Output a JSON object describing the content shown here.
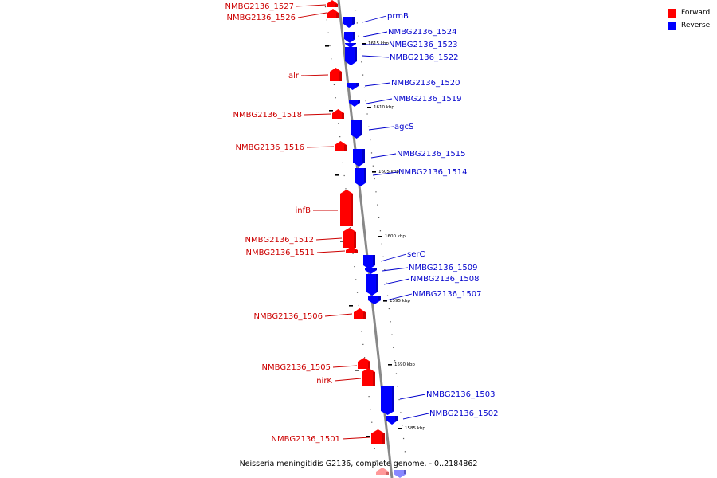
{
  "caption": "Neisseria meningitidis G2136, complete genome. - 0..2184862",
  "legend": [
    {
      "label": "Forward",
      "color": "#ff0000"
    },
    {
      "label": "Reverse",
      "color": "#0000ff"
    }
  ],
  "colors": {
    "forward": "#ff0000",
    "reverse": "#0000ff",
    "backbone": "#888888"
  },
  "ticks": [
    "1615 kbp",
    "1610 kbp",
    "1605 kbp",
    "1600 kbp",
    "1595 kbp",
    "1590 kbp",
    "1585 kbp"
  ],
  "genes_forward": [
    "NMBG2136_1527",
    "NMBG2136_1526",
    "alr",
    "NMBG2136_1518",
    "NMBG2136_1516",
    "infB",
    "NMBG2136_1512",
    "NMBG2136_1511",
    "NMBG2136_1506",
    "NMBG2136_1505",
    "nirK",
    "NMBG2136_1501"
  ],
  "genes_reverse": [
    "prmB",
    "NMBG2136_1524",
    "NMBG2136_1523",
    "NMBG2136_1522",
    "NMBG2136_1520",
    "NMBG2136_1519",
    "agcS",
    "NMBG2136_1515",
    "NMBG2136_1514",
    "serC",
    "NMBG2136_1509",
    "NMBG2136_1508",
    "NMBG2136_1507",
    "NMBG2136_1503",
    "NMBG2136_1502"
  ]
}
